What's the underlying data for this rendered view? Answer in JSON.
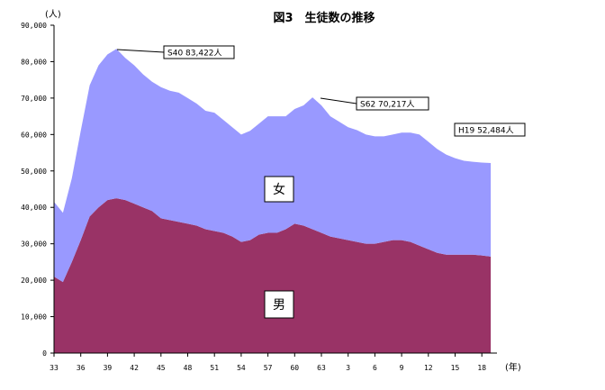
{
  "chart_data": {
    "type": "area",
    "title": "図3　生徒数の推移",
    "y_unit": "(人)",
    "x_unit": "(年)",
    "ylim": [
      0,
      90000
    ],
    "y_ticks": [
      "0",
      "10,000",
      "20,000",
      "30,000",
      "40,000",
      "50,000",
      "60,000",
      "70,000",
      "80,000",
      "90,000"
    ],
    "x_tick_labels": [
      "33",
      "36",
      "39",
      "42",
      "45",
      "48",
      "51",
      "54",
      "57",
      "60",
      "63",
      "3",
      "6",
      "9",
      "12",
      "15",
      "18"
    ],
    "x": [
      "33",
      "34",
      "35",
      "36",
      "37",
      "38",
      "39",
      "40",
      "41",
      "42",
      "43",
      "44",
      "45",
      "46",
      "47",
      "48",
      "49",
      "50",
      "51",
      "52",
      "53",
      "54",
      "55",
      "56",
      "57",
      "58",
      "59",
      "60",
      "61",
      "62",
      "63",
      "1",
      "2",
      "3",
      "4",
      "5",
      "6",
      "7",
      "8",
      "9",
      "10",
      "11",
      "12",
      "13",
      "14",
      "15",
      "16",
      "17",
      "18",
      "19"
    ],
    "series": [
      {
        "name": "男",
        "color": "#993366",
        "values": [
          21000,
          19500,
          25000,
          31000,
          37500,
          40000,
          42000,
          42500,
          42000,
          41000,
          40000,
          39000,
          37000,
          36500,
          36000,
          35500,
          35000,
          34000,
          33500,
          33000,
          32000,
          30500,
          31000,
          32500,
          33000,
          33000,
          34000,
          35500,
          35000,
          34000,
          33000,
          32000,
          31500,
          31000,
          30500,
          30000,
          30000,
          30500,
          31000,
          31000,
          30500,
          29500,
          28500,
          27500,
          27000,
          27000,
          27000,
          27000,
          26800,
          26500
        ]
      },
      {
        "name": "女",
        "color": "#9999ff",
        "values": [
          20500,
          19000,
          23000,
          30000,
          36000,
          39000,
          40000,
          41000,
          39000,
          38000,
          36500,
          35500,
          36000,
          35500,
          35500,
          34500,
          33500,
          32500,
          32500,
          31000,
          30000,
          29500,
          30000,
          30500,
          32000,
          32000,
          31000,
          31500,
          33000,
          36200,
          35000,
          33000,
          32000,
          31000,
          30700,
          30000,
          29500,
          29000,
          29000,
          29500,
          30000,
          30500,
          29500,
          28500,
          27500,
          26500,
          25800,
          25500,
          25500,
          25684
        ]
      }
    ],
    "annotations": [
      "S40  83,422人",
      "S62  70,217人",
      "H19 52,484人"
    ],
    "area_labels": [
      "女",
      "男"
    ],
    "grid": false,
    "legend": "none"
  }
}
